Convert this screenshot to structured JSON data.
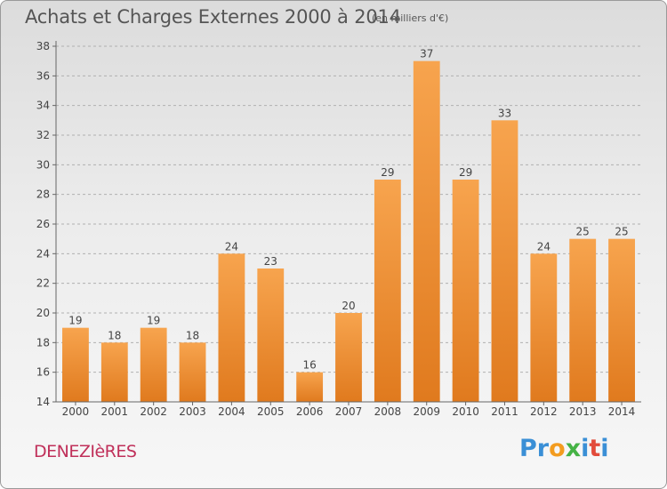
{
  "title": "Achats et Charges Externes 2000 à 2014",
  "unit": "(en milliers d'€)",
  "commune": "DENEZIèRES",
  "logo": {
    "letters": [
      {
        "ch": "P",
        "color": "#3a8fd6"
      },
      {
        "ch": "r",
        "color": "#3a8fd6"
      },
      {
        "ch": "o",
        "color": "#f39c1f"
      },
      {
        "ch": "x",
        "color": "#45b245"
      },
      {
        "ch": "i",
        "color": "#3a8fd6"
      },
      {
        "ch": "t",
        "color": "#e24b3b"
      },
      {
        "ch": "i",
        "color": "#3a8fd6"
      }
    ]
  },
  "colors": {
    "bar_light": "#f7a44e",
    "bar_dark": "#e07a1e",
    "grid": "#b0b0b0"
  },
  "chart_data": {
    "type": "bar",
    "categories": [
      "2000",
      "2001",
      "2002",
      "2003",
      "2004",
      "2005",
      "2006",
      "2007",
      "2008",
      "2009",
      "2010",
      "2011",
      "2012",
      "2013",
      "2014"
    ],
    "values": [
      19,
      18,
      19,
      18,
      24,
      23,
      16,
      20,
      29,
      37,
      29,
      33,
      24,
      25,
      25
    ],
    "ylim": [
      14,
      38
    ],
    "yticks": [
      14,
      16,
      18,
      20,
      22,
      24,
      26,
      28,
      30,
      32,
      34,
      36,
      38
    ],
    "grid": true,
    "data_labels": true
  }
}
